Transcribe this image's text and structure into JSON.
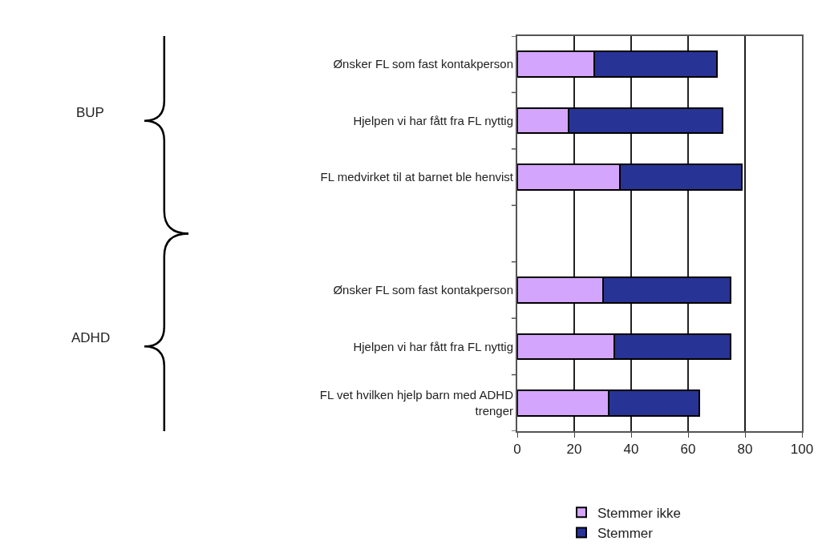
{
  "chart_data": {
    "type": "bar",
    "orientation": "horizontal",
    "stacked": true,
    "categories": [
      "Ønsker FL som fast kontakperson",
      "Hjelpen vi har fått fra FL nyttig",
      "FL medvirket til at barnet ble henvist",
      null,
      "Ønsker FL som fast kontakperson",
      "Hjelpen vi har fått fra FL nyttig",
      "FL vet hvilken hjelp barn med ADHD trenger"
    ],
    "series": [
      {
        "name": "Stemmer ikke",
        "color": "#d4a5fc",
        "values": [
          27,
          18,
          36,
          null,
          30,
          34,
          32
        ]
      },
      {
        "name": "Stemmer",
        "color": "#283396",
        "values": [
          43,
          54,
          43,
          null,
          45,
          41,
          32
        ]
      }
    ],
    "xlim": [
      0,
      100
    ],
    "xticks": [
      0,
      20,
      40,
      60,
      80,
      100
    ],
    "grid": "x",
    "legend": "bottom",
    "annotations": [
      "BUP",
      "ADHD"
    ]
  }
}
